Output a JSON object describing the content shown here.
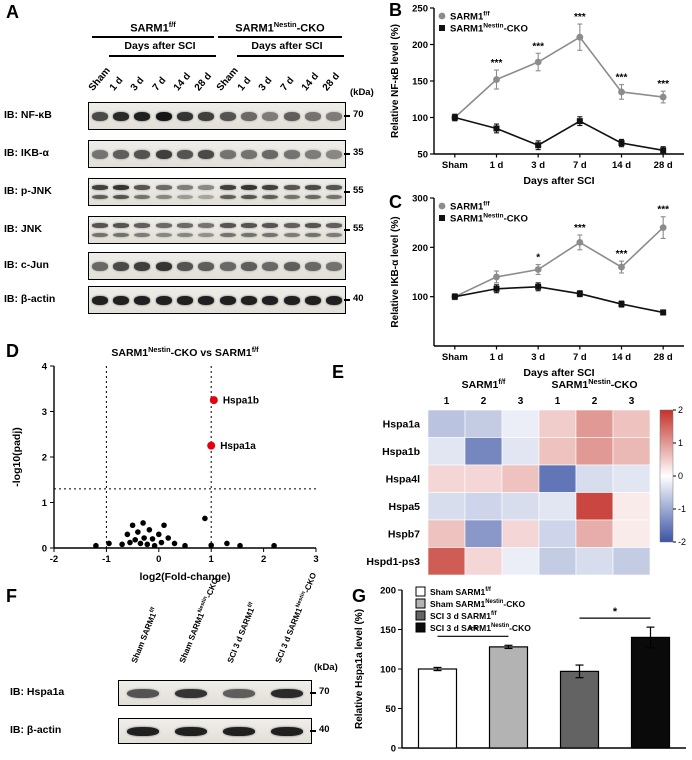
{
  "panels": {
    "A": {
      "letter": "A",
      "groups": [
        {
          "label": "SARM1^{f/f}",
          "sub": "Days after SCI"
        },
        {
          "label": "SARM1^{Nestin}-CKO",
          "sub": "Days after SCI"
        }
      ],
      "lane_labels": [
        "Sham",
        "1 d",
        "3 d",
        "7 d",
        "14 d",
        "28 d",
        "Sham",
        "1 d",
        "3 d",
        "7 d",
        "14 d",
        "28 d"
      ],
      "kda_header": "(kDa)",
      "blots": [
        {
          "label": "IB: NF-κB",
          "kda": "70",
          "doublet": false,
          "bands": [
            0.75,
            0.9,
            0.95,
            1,
            0.85,
            0.8,
            0.7,
            0.6,
            0.5,
            0.65,
            0.55,
            0.5
          ]
        },
        {
          "label": "IB: IKB-α",
          "kda": "35",
          "doublet": false,
          "bands": [
            0.55,
            0.65,
            0.7,
            0.8,
            0.7,
            0.75,
            0.55,
            0.55,
            0.6,
            0.55,
            0.5,
            0.45
          ]
        },
        {
          "label": "IB: p-JNK",
          "kda": "55",
          "doublet": true,
          "bands": [
            0.8,
            0.85,
            0.7,
            0.6,
            0.5,
            0.45,
            0.8,
            0.85,
            0.8,
            0.7,
            0.75,
            0.7
          ]
        },
        {
          "label": "IB: JNK",
          "kda": "55",
          "doublet": true,
          "bands": [
            0.7,
            0.7,
            0.65,
            0.6,
            0.6,
            0.55,
            0.7,
            0.7,
            0.7,
            0.65,
            0.7,
            0.65
          ]
        },
        {
          "label": "IB: c-Jun",
          "kda": "",
          "doublet": false,
          "bands": [
            0.6,
            0.75,
            0.8,
            0.85,
            0.7,
            0.65,
            0.6,
            0.65,
            0.6,
            0.65,
            0.6,
            0.55
          ]
        },
        {
          "label": "IB: β-actin",
          "kda": "40",
          "doublet": false,
          "bands": [
            0.95,
            0.95,
            0.95,
            0.95,
            0.95,
            0.95,
            0.95,
            0.95,
            0.95,
            0.95,
            0.95,
            0.95
          ]
        }
      ]
    },
    "B": {
      "letter": "B"
    },
    "C": {
      "letter": "C"
    },
    "D": {
      "letter": "D"
    },
    "E": {
      "letter": "E"
    },
    "F": {
      "letter": "F",
      "lane_labels": [
        "Sham SARM1^{f/f}",
        "Sham SARM1^{Nestin}-CKO",
        "SCI 3 d SARM1^{f/f}",
        "SCI 3 d SARM1^{Nestin}-CKO"
      ],
      "kda_header": "(kDa)",
      "blots": [
        {
          "label": "IB: Hspa1a",
          "kda": "70",
          "doublet": false,
          "bands": [
            0.7,
            0.85,
            0.65,
            0.9
          ]
        },
        {
          "label": "IB: β-actin",
          "kda": "40",
          "doublet": false,
          "bands": [
            0.95,
            0.95,
            0.95,
            0.95
          ]
        }
      ]
    },
    "G": {
      "letter": "G"
    }
  },
  "chart_data": [
    {
      "id": "B",
      "type": "line",
      "categories": [
        "Sham",
        "1 d",
        "3 d",
        "7 d",
        "14 d",
        "28 d"
      ],
      "xlabel": "Days after SCI",
      "ylabel": "Relative NF-κB level (%)",
      "ylim": [
        50,
        250
      ],
      "yticks": [
        50,
        100,
        150,
        200,
        250
      ],
      "legend_position": "top-left",
      "series": [
        {
          "name": "SARM1^{f/f}",
          "color": "#8c8c8c",
          "marker": "circle",
          "values": [
            100,
            152,
            176,
            210,
            135,
            128
          ],
          "errors": [
            5,
            13,
            12,
            18,
            10,
            8
          ],
          "sig": [
            "",
            "***",
            "***",
            "***",
            "***",
            "***"
          ]
        },
        {
          "name": "SARM1^{Nestin}-CKO",
          "color": "#111111",
          "marker": "square",
          "values": [
            100,
            85,
            62,
            95,
            65,
            55
          ],
          "errors": [
            4,
            6,
            6,
            6,
            5,
            5
          ],
          "sig": [
            "",
            "",
            "",
            "",
            "",
            ""
          ]
        }
      ]
    },
    {
      "id": "C",
      "type": "line",
      "categories": [
        "Sham",
        "1 d",
        "3 d",
        "7 d",
        "14 d",
        "28 d"
      ],
      "xlabel": "Days after SCI",
      "ylabel": "Relative IKB-α level (%)",
      "ylim": [
        0,
        300
      ],
      "yticks": [
        100,
        200,
        300
      ],
      "legend_position": "top-left",
      "series": [
        {
          "name": "SARM1^{f/f}",
          "color": "#8c8c8c",
          "marker": "circle",
          "values": [
            100,
            140,
            155,
            210,
            160,
            240
          ],
          "errors": [
            6,
            12,
            10,
            15,
            12,
            22
          ],
          "sig": [
            "",
            "",
            "*",
            "***",
            "***",
            "***"
          ]
        },
        {
          "name": "SARM1^{Nestin}-CKO",
          "color": "#111111",
          "marker": "square",
          "values": [
            100,
            116,
            120,
            106,
            85,
            68
          ],
          "errors": [
            5,
            8,
            8,
            6,
            6,
            5
          ],
          "sig": [
            "",
            "",
            "",
            "",
            "",
            ""
          ]
        }
      ]
    },
    {
      "id": "D",
      "type": "scatter",
      "title": "SARM1^{Nestin}-CKO vs SARM1^{f/f}",
      "xlabel": "log2(Fold-change)",
      "ylabel": "-log10(padj)",
      "xlim": [
        -2,
        3
      ],
      "xticks": [
        -2,
        -1,
        0,
        1,
        2,
        3
      ],
      "ylim": [
        0,
        4
      ],
      "yticks": [
        0,
        1,
        2,
        3,
        4
      ],
      "threshold_x": [
        -1,
        1
      ],
      "threshold_y": 1.3,
      "highlight_color": "#e4000f",
      "highlighted": [
        {
          "label": "Hspa1b",
          "x": 1.05,
          "y": 3.25
        },
        {
          "label": "Hspa1a",
          "x": 1.0,
          "y": 2.25
        }
      ],
      "points": [
        [
          -1.2,
          0.05
        ],
        [
          -0.95,
          0.1
        ],
        [
          -0.7,
          0.08
        ],
        [
          -0.6,
          0.3
        ],
        [
          -0.55,
          0.12
        ],
        [
          -0.5,
          0.5
        ],
        [
          -0.45,
          0.18
        ],
        [
          -0.4,
          0.35
        ],
        [
          -0.35,
          0.1
        ],
        [
          -0.3,
          0.55
        ],
        [
          -0.28,
          0.22
        ],
        [
          -0.22,
          0.08
        ],
        [
          -0.18,
          0.4
        ],
        [
          -0.12,
          0.2
        ],
        [
          -0.08,
          0.05
        ],
        [
          0.0,
          0.3
        ],
        [
          0.05,
          0.12
        ],
        [
          0.1,
          0.5
        ],
        [
          0.18,
          0.22
        ],
        [
          0.3,
          0.1
        ],
        [
          0.5,
          0.05
        ],
        [
          0.88,
          0.65
        ],
        [
          1.0,
          0.06
        ],
        [
          1.3,
          0.1
        ],
        [
          1.55,
          0.05
        ],
        [
          2.2,
          0.05
        ]
      ]
    },
    {
      "id": "E",
      "type": "heatmap",
      "row_labels": [
        "Hspa1a",
        "Hspa1b",
        "Hspa4l",
        "Hspa5",
        "Hspb7",
        "Hspd1-ps3"
      ],
      "col_groups": [
        {
          "label": "SARM1^{f/f}",
          "cols": [
            "1",
            "2",
            "3"
          ]
        },
        {
          "label": "SARM1^{Nestin}-CKO",
          "cols": [
            "1",
            "2",
            "3"
          ]
        }
      ],
      "values": [
        [
          -0.7,
          -0.6,
          -0.2,
          0.5,
          1.0,
          0.6
        ],
        [
          -0.3,
          -1.4,
          -0.3,
          0.6,
          1.0,
          0.7
        ],
        [
          0.4,
          0.4,
          0.6,
          -1.6,
          -0.4,
          -0.3
        ],
        [
          -0.4,
          -0.5,
          -0.4,
          -0.3,
          1.8,
          0.2
        ],
        [
          0.6,
          -1.2,
          0.4,
          -0.5,
          0.8,
          0.2
        ],
        [
          1.6,
          0.4,
          -0.2,
          -0.6,
          -0.4,
          -0.6
        ]
      ],
      "scale": {
        "min": -2,
        "max": 2,
        "ticks": [
          "2",
          "1",
          "0",
          "-1",
          "-2"
        ],
        "pos_color": "#c3332b",
        "mid_color": "#ffffff",
        "neg_color": "#3b54a5"
      }
    },
    {
      "id": "G",
      "type": "bar",
      "categories": [
        "Sham SARM1^{f/f}",
        "Sham SARM1^{Nestin}-CKO",
        "SCI 3 d SARM1^{f/f}",
        "SCI 3 d SARM1^{Nestin}-CKO"
      ],
      "values": [
        100,
        128,
        97,
        140
      ],
      "errors": [
        2,
        2,
        8,
        13
      ],
      "bar_colors": [
        "#ffffff",
        "#b3b3b3",
        "#636363",
        "#0a0a0a"
      ],
      "ylabel": "Relative Hspa1a level (%)",
      "ylim": [
        0,
        200
      ],
      "yticks": [
        0,
        50,
        100,
        150,
        200
      ],
      "significance": [
        {
          "from": 0,
          "to": 1,
          "label": "**"
        },
        {
          "from": 2,
          "to": 3,
          "label": "*"
        }
      ]
    }
  ]
}
